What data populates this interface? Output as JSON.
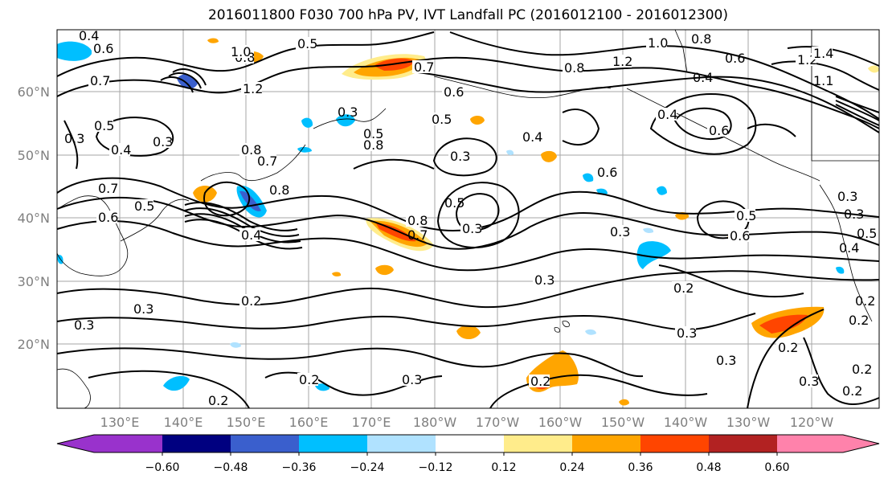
{
  "title": "2016011800 F030 700 hPa PV, IVT Landfall PC (2016012100 - 2016012300)",
  "latitude_labels": [
    "60°N",
    "50°N",
    "40°N",
    "30°N",
    "20°N"
  ],
  "longitude_labels": [
    "130°E",
    "140°E",
    "150°E",
    "160°E",
    "170°E",
    "180°W",
    "170°W",
    "160°W",
    "150°W",
    "140°W",
    "130°W",
    "120°W"
  ],
  "colorbar": {
    "tick_labels": [
      "−0.60",
      "−0.48",
      "−0.36",
      "−0.24",
      "−0.12",
      "0.12",
      "0.24",
      "0.36",
      "0.48",
      "0.60"
    ],
    "colors": [
      "#9932cc",
      "#000080",
      "#3a5fcd",
      "#00bfff",
      "#b0e2ff",
      "#ffffff",
      "#ffec8b",
      "#ffa500",
      "#ff4500",
      "#b22222",
      "#ff82ab"
    ]
  },
  "contour_labels": [
    "0.4",
    "0.6",
    "0.7",
    "0.5",
    "0.3",
    "0.8",
    "1.0",
    "1.2",
    "0.5",
    "0.6",
    "0.7",
    "0.3",
    "0.4",
    "0.8",
    "0.5",
    "0.5",
    "0.6",
    "0.7",
    "0.5",
    "0.8",
    "0.7",
    "0.3",
    "0.8",
    "0.5",
    "0.4",
    "0.3",
    "0.3",
    "0.2",
    "0.3",
    "0.2",
    "0.2",
    "0.2",
    "0.3",
    "0.2",
    "0.8",
    "0.7",
    "0.3",
    "0.4",
    "0.6",
    "0.6",
    "0.5",
    "0.3",
    "0.3",
    "0.2",
    "0.3",
    "0.2",
    "0.3",
    "0.3",
    "0.2",
    "0.2",
    "1.0",
    "0.8",
    "1.2",
    "1.2",
    "1.4",
    "1.1",
    "0.4",
    "0.6",
    "0.8",
    "0.4",
    "0.3",
    "0.5",
    "0.4",
    "0.6",
    "0.3",
    "0.2"
  ]
}
